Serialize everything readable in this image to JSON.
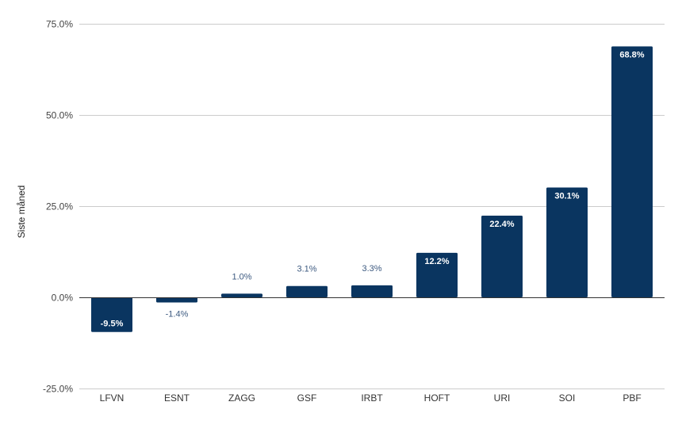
{
  "chart_data": {
    "type": "bar",
    "title": "",
    "xlabel": "",
    "ylabel": "Siste måned",
    "categories": [
      "LFVN",
      "ESNT",
      "ZAGG",
      "GSF",
      "IRBT",
      "HOFT",
      "URI",
      "SOI",
      "PBF"
    ],
    "values": [
      -9.5,
      -1.4,
      1.0,
      3.1,
      3.3,
      12.2,
      22.4,
      30.1,
      68.8
    ],
    "data_labels": [
      "-9.5%",
      "-1.4%",
      "1.0%",
      "3.1%",
      "3.3%",
      "12.2%",
      "22.4%",
      "30.1%",
      "68.8%"
    ],
    "ylim": [
      -25,
      75
    ],
    "yticks": [
      -25,
      0,
      25,
      50,
      75
    ],
    "ytick_labels": [
      "-25.0%",
      "0.0%",
      "25.0%",
      "50.0%",
      "75.0%"
    ],
    "grid": true,
    "legend": "none",
    "bar_color": "#0a3560",
    "outside_label_color": "#3d5a80"
  }
}
